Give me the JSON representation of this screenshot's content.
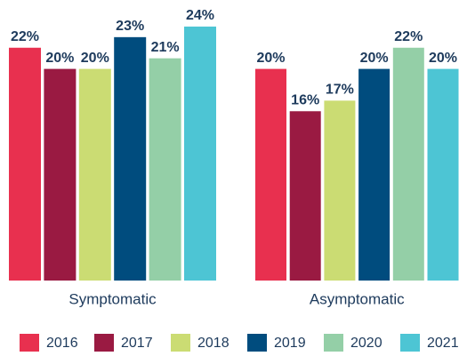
{
  "chart_data": {
    "type": "bar",
    "categories": [
      "Symptomatic",
      "Asymptomatic"
    ],
    "series": [
      {
        "name": "2016",
        "color": "#e8304f",
        "values": [
          22,
          20
        ],
        "value_labels": [
          "22%",
          "20%"
        ]
      },
      {
        "name": "2017",
        "color": "#9a1a42",
        "values": [
          20,
          16
        ],
        "value_labels": [
          "20%",
          "16%"
        ]
      },
      {
        "name": "2018",
        "color": "#cbdc73",
        "values": [
          20,
          17
        ],
        "value_labels": [
          "20%",
          "17%"
        ]
      },
      {
        "name": "2019",
        "color": "#004c7e",
        "values": [
          23,
          20
        ],
        "value_labels": [
          "23%",
          "20%"
        ]
      },
      {
        "name": "2020",
        "color": "#94cfa7",
        "values": [
          21,
          22
        ],
        "value_labels": [
          "21%",
          "22%"
        ]
      },
      {
        "name": "2021",
        "color": "#4dc5d4",
        "values": [
          24,
          20
        ],
        "value_labels": [
          "24%",
          "20%"
        ]
      }
    ]
  }
}
